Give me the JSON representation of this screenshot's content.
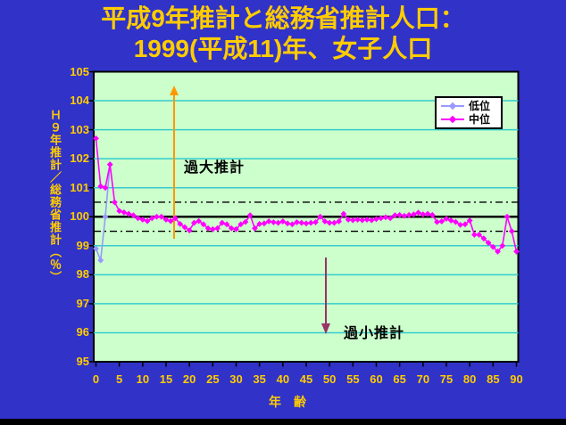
{
  "title": {
    "line1": "平成9年推計と総務省推計人口：",
    "line2": "1999(平成11)年、女子人口"
  },
  "chart_data": {
    "type": "line",
    "title": "平成9年推計と総務省推計人口：1999(平成11)年、女子人口",
    "xlabel": "年　齢",
    "ylabel": "Ｈ９年推計／総務省推計（％）",
    "xlim": [
      0,
      90
    ],
    "ylim": [
      95,
      105
    ],
    "x_ticks": [
      0,
      5,
      10,
      15,
      20,
      25,
      30,
      35,
      40,
      45,
      50,
      55,
      60,
      65,
      70,
      75,
      80,
      85,
      90
    ],
    "y_ticks": [
      95,
      96,
      97,
      98,
      99,
      100,
      101,
      102,
      103,
      104,
      105
    ],
    "grid": "horizontal cyan lines at every 1 unit",
    "reference_lines": {
      "solid_black": 100,
      "dash_dot_black": [
        99.5,
        100.5
      ]
    },
    "legend_position": "inside top-right",
    "series": [
      {
        "name": "低位",
        "color": "#9999ff",
        "x": [
          0,
          1,
          2,
          3
        ],
        "values": [
          98.9,
          98.5,
          100.0,
          101.8
        ]
      },
      {
        "name": "中位",
        "color": "#ff00ff",
        "x_start": 0,
        "x_step": 1,
        "values": [
          102.7,
          101.05,
          101.0,
          101.8,
          100.5,
          100.2,
          100.15,
          100.1,
          100.05,
          99.95,
          99.9,
          99.85,
          99.95,
          100.0,
          100.0,
          99.9,
          99.85,
          99.95,
          99.75,
          99.64,
          99.53,
          99.79,
          99.85,
          99.74,
          99.6,
          99.57,
          99.6,
          99.79,
          99.74,
          99.6,
          99.57,
          99.74,
          99.82,
          100.05,
          99.6,
          99.75,
          99.77,
          99.84,
          99.81,
          99.79,
          99.84,
          99.77,
          99.74,
          99.81,
          99.79,
          99.77,
          99.79,
          99.81,
          100.0,
          99.84,
          99.79,
          99.79,
          99.84,
          100.1,
          99.9,
          99.88,
          99.9,
          99.88,
          99.9,
          99.88,
          99.92,
          99.95,
          99.98,
          99.95,
          100.05,
          100.06,
          100.03,
          100.06,
          100.08,
          100.14,
          100.08,
          100.1,
          100.06,
          99.82,
          99.84,
          99.93,
          99.87,
          99.82,
          99.72,
          99.74,
          99.87,
          99.38,
          99.38,
          99.25,
          99.1,
          98.96,
          98.8,
          99.0,
          100.0,
          99.5,
          98.8
        ]
      }
    ],
    "annotations": [
      {
        "text": "過大推計",
        "arrow": "up",
        "arrow_color": "#ff9900"
      },
      {
        "text": "過小推計",
        "arrow": "down",
        "arrow_color": "#993366"
      }
    ]
  },
  "colors": {
    "background": "#3032c8",
    "title_text": "#ffcc00",
    "axis_text": "#ffcc00",
    "plot_background": "#ccffcc",
    "gridline": "#33cccc",
    "reference_line": "#000000",
    "series_low": "#9999ff",
    "series_mid": "#ff00ff",
    "arrow_up": "#ff9900",
    "arrow_down": "#993366",
    "legend_background": "#ffffff"
  }
}
